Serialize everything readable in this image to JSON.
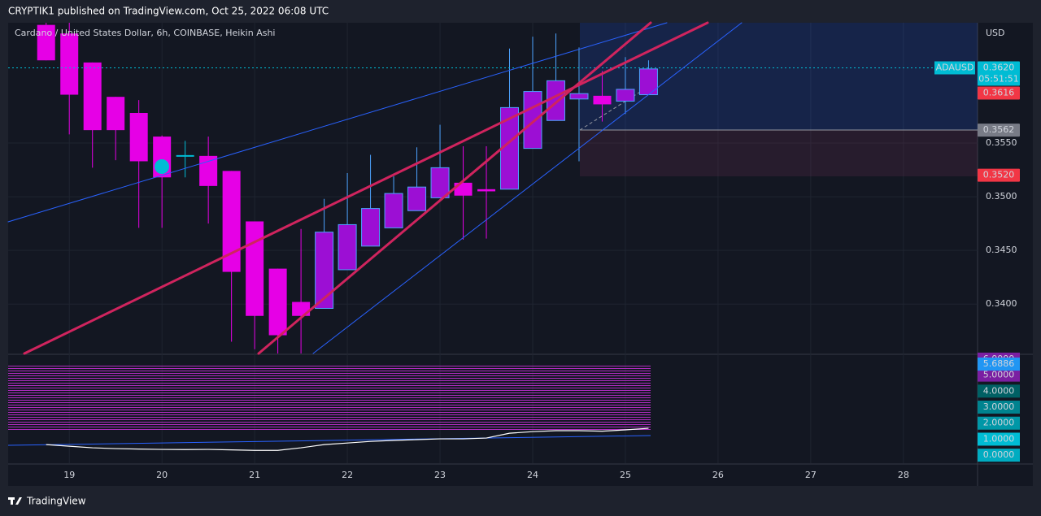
{
  "header": {
    "text": "CRYPTIK1 published on TradingView.com, Oct 25, 2022 06:08 UTC"
  },
  "footer": {
    "brand": "TradingView"
  },
  "chart_data": {
    "type": "candlestick",
    "title": "Cardano / United States Dollar, 6h, COINBASE, Heikin Ashi",
    "currency": "USD",
    "symbol": "ADAUSD",
    "countdown": "05:51:51",
    "x": [
      18.75,
      19,
      19.25,
      19.5,
      19.75,
      20,
      20.25,
      20.5,
      20.75,
      21,
      21.25,
      21.5,
      21.75,
      22,
      22.25,
      22.5,
      22.75,
      23,
      23.25,
      23.5,
      23.75,
      24,
      24.25,
      24.5,
      24.75,
      25,
      25.25
    ],
    "open": [
      0.366,
      0.3652,
      0.3625,
      0.3593,
      0.3578,
      0.3556,
      0.3538,
      0.3538,
      0.3524,
      0.3477,
      0.3433,
      0.3402,
      0.3396,
      0.3432,
      0.3454,
      0.3471,
      0.3487,
      0.3499,
      0.3513,
      0.3507,
      0.3507,
      0.3545,
      0.3571,
      0.3591,
      0.3594,
      0.3589,
      0.3595
    ],
    "high": [
      0.3662,
      0.3662,
      0.3625,
      0.3593,
      0.359,
      0.3557,
      0.3552,
      0.3556,
      0.3524,
      0.3477,
      0.3433,
      0.347,
      0.3498,
      0.3522,
      0.3539,
      0.3519,
      0.3546,
      0.3567,
      0.3547,
      0.3547,
      0.3638,
      0.3649,
      0.3652,
      0.3639,
      0.3617,
      0.363,
      0.3627
    ],
    "low": [
      0.3627,
      0.3558,
      0.3527,
      0.3534,
      0.3471,
      0.3471,
      0.3518,
      0.3475,
      0.3365,
      0.3358,
      0.3354,
      0.3354,
      0.3396,
      0.3432,
      0.3454,
      0.3471,
      0.3487,
      0.3499,
      0.346,
      0.3461,
      0.3507,
      0.3545,
      0.3571,
      0.3533,
      0.357,
      0.3577,
      0.3595
    ],
    "close": [
      0.3627,
      0.3595,
      0.3562,
      0.3562,
      0.3533,
      0.3518,
      0.3538,
      0.351,
      0.343,
      0.3389,
      0.3371,
      0.3389,
      0.3467,
      0.3474,
      0.3489,
      0.3503,
      0.3509,
      0.3527,
      0.3501,
      0.3505,
      0.3583,
      0.3598,
      0.3608,
      0.3596,
      0.3586,
      0.36,
      0.3619
    ],
    "up_color": "#9c0fd4",
    "up_border": "#4da3ff",
    "down_color": "#e600e6",
    "doji_color": "#00bcd4",
    "xlim": [
      18.34,
      28.8
    ],
    "xticks": [
      19,
      20,
      21,
      22,
      23,
      24,
      25,
      26,
      27,
      28
    ],
    "ylim": [
      0.3354,
      0.3662
    ],
    "yticks": [
      {
        "value": 0.34,
        "label": "0.3400"
      },
      {
        "value": 0.345,
        "label": "0.3450"
      },
      {
        "value": 0.35,
        "label": "0.3500"
      },
      {
        "value": 0.355,
        "label": "0.3550"
      }
    ],
    "grid": true,
    "price_labels": [
      {
        "value": 0.362,
        "label": "0.3620",
        "color": "#00bcd4"
      },
      {
        "value": 0.3616,
        "label": "0.3616",
        "color": "#f23645"
      },
      {
        "value": 0.3562,
        "label": "0.3562",
        "color": "#787b86"
      },
      {
        "value": 0.352,
        "label": "0.3520",
        "color": "#f23645"
      }
    ],
    "indicator": {
      "color": "#ffffff",
      "values": [
        0.66,
        0.56,
        0.46,
        0.41,
        0.38,
        0.36,
        0.35,
        0.36,
        0.33,
        0.3,
        0.3,
        0.46,
        0.66,
        0.76,
        0.86,
        0.92,
        0.97,
        1.02,
        1.02,
        1.07,
        1.37,
        1.47,
        1.53,
        1.53,
        1.5,
        1.58,
        1.68
      ],
      "ylim": [
        -0.5,
        6.25
      ],
      "yticks": [
        {
          "value": 6,
          "label": "6.0000"
        },
        {
          "value": 5,
          "label": "5.0000"
        },
        {
          "value": 4,
          "label": "4.0000"
        },
        {
          "value": 3,
          "label": "3.0000"
        },
        {
          "value": 2,
          "label": "2.0000"
        },
        {
          "value": 1,
          "label": "1.0000"
        },
        {
          "value": 0,
          "label": "0.0000"
        }
      ],
      "tick_colors": [
        "#7b1fa2",
        "#7b1fa2",
        "#006064",
        "#00838f",
        "#0097a7",
        "#00bcd4",
        "#00acc1"
      ],
      "marker": {
        "value": 5.6886,
        "label": "5.6886",
        "color": "#2196f3"
      }
    }
  }
}
